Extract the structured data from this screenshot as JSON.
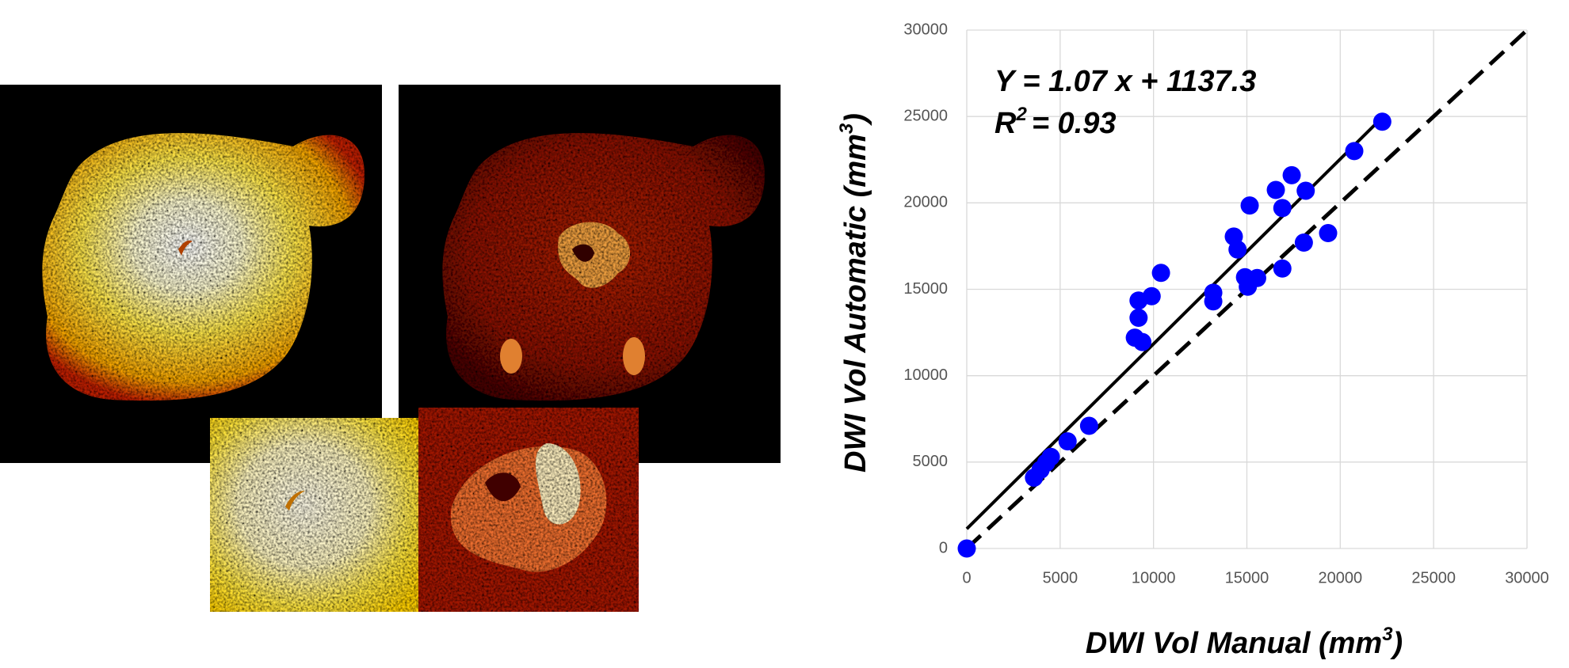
{
  "chart_data": {
    "type": "scatter",
    "x_label": {
      "text": "DWI Vol Manual (mm",
      "sup": "3",
      "end": ")"
    },
    "y_label": {
      "text": "DWI Vol Automatic (mm",
      "sup": "3",
      "end": ")"
    },
    "equation": "Y = 1.07 x + 1137.3",
    "r_squared": {
      "symbol": "R",
      "sup": "2",
      "text": "= 0.93"
    },
    "fit": {
      "slope": 1.07,
      "intercept": 1137.3
    },
    "x": [
      0,
      3600,
      3950,
      4250,
      4500,
      5400,
      6550,
      9000,
      9400,
      9200,
      9200,
      9900,
      10400,
      13200,
      13200,
      14300,
      14500,
      14900,
      15050,
      15150,
      15550,
      16550,
      16900,
      16900,
      17400,
      18150,
      18050,
      19350,
      20750,
      22250
    ],
    "y": [
      0,
      4100,
      4550,
      4950,
      5300,
      6200,
      7100,
      12200,
      11950,
      13350,
      14350,
      14600,
      15950,
      14800,
      14300,
      18050,
      17300,
      15700,
      15150,
      19850,
      15650,
      20750,
      19700,
      16200,
      21600,
      20700,
      17700,
      18250,
      23000,
      24700
    ],
    "color": "#0000ff",
    "xlim": [
      0,
      30000
    ],
    "ylim": [
      0,
      30000
    ],
    "xticks": [
      0,
      5000,
      10000,
      15000,
      20000,
      25000,
      30000
    ],
    "yticks": [
      0,
      5000,
      10000,
      15000,
      20000,
      25000,
      30000
    ],
    "grid": true
  }
}
